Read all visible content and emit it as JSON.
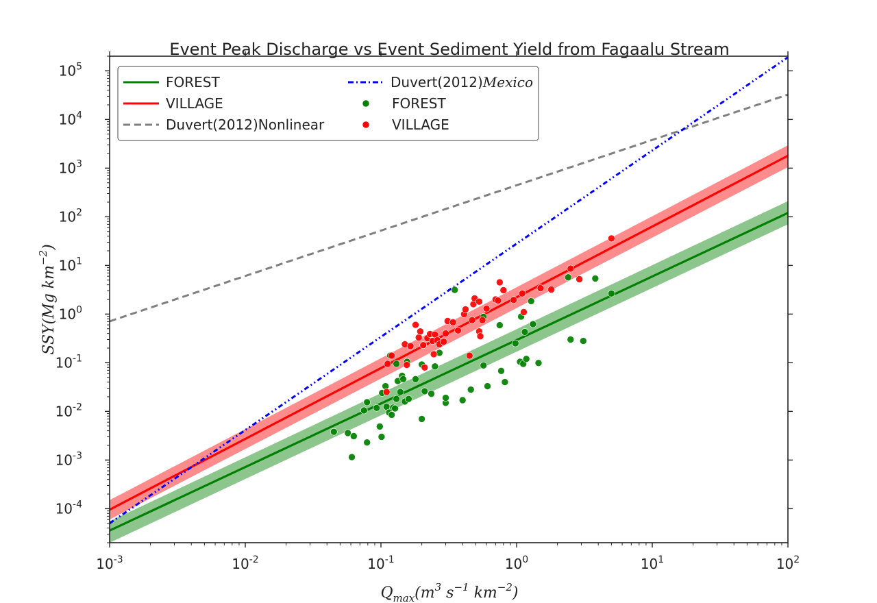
{
  "chart_data": {
    "type": "scatter",
    "title": "Event Peak Discharge vs Event Sediment Yield from Fagaalu Stream",
    "xlabel": "Q_max(m^3 s^-1 km^-2)",
    "ylabel": "SSY(Mg km^-2)",
    "x_scale": "log",
    "y_scale": "log",
    "xlim": [
      0.001,
      100
    ],
    "ylim": [
      2e-05,
      200000
    ],
    "x_ticks": [
      {
        "value": 0.001,
        "base": "10",
        "exp": "-3"
      },
      {
        "value": 0.01,
        "base": "10",
        "exp": "-2"
      },
      {
        "value": 0.1,
        "base": "10",
        "exp": "-1"
      },
      {
        "value": 1,
        "base": "10",
        "exp": "0"
      },
      {
        "value": 10,
        "base": "10",
        "exp": "1"
      },
      {
        "value": 100,
        "base": "10",
        "exp": "2"
      }
    ],
    "y_ticks": [
      {
        "value": 0.0001,
        "base": "10",
        "exp": "-4"
      },
      {
        "value": 0.001,
        "base": "10",
        "exp": "-3"
      },
      {
        "value": 0.01,
        "base": "10",
        "exp": "-2"
      },
      {
        "value": 0.1,
        "base": "10",
        "exp": "-1"
      },
      {
        "value": 1,
        "base": "10",
        "exp": "0"
      },
      {
        "value": 10,
        "base": "10",
        "exp": "1"
      },
      {
        "value": 100,
        "base": "10",
        "exp": "2"
      },
      {
        "value": 1000,
        "base": "10",
        "exp": "3"
      },
      {
        "value": 10000,
        "base": "10",
        "exp": "4"
      },
      {
        "value": 100000,
        "base": "10",
        "exp": "5"
      }
    ],
    "grid": false,
    "legend_position": "top-left",
    "lines": [
      {
        "name": "FOREST",
        "color": "#008000",
        "style": "solid",
        "x": [
          0.001,
          100
        ],
        "y": [
          3.55e-05,
          120
        ],
        "band": {
          "color": "#008000",
          "opacity": 0.45,
          "lower": [
            2e-05,
            70
          ],
          "upper": [
            5.5e-05,
            210
          ]
        }
      },
      {
        "name": "VILLAGE",
        "color": "#ff0000",
        "style": "solid",
        "x": [
          0.001,
          100
        ],
        "y": [
          9.55e-05,
          1800
        ],
        "band": {
          "color": "#ff0000",
          "opacity": 0.45,
          "lower": [
            6e-05,
            1050
          ],
          "upper": [
            0.00015,
            2950
          ]
        }
      },
      {
        "name": "Duvert(2012)Nonlinear",
        "color": "#7f7f7f",
        "style": "dashed",
        "x": [
          0.001,
          100
        ],
        "y": [
          0.71,
          32500
        ]
      },
      {
        "name": "Duvert(2012)",
        "name_math": "Mexico",
        "color": "#0000ff",
        "style": "dashdotdot",
        "x": [
          0.001,
          100
        ],
        "y": [
          5e-05,
          190000
        ]
      }
    ],
    "scatter_series": [
      {
        "name": "FOREST",
        "color": "#008000",
        "points": [
          [
            0.045,
            0.0038
          ],
          [
            0.057,
            0.0036
          ],
          [
            0.063,
            0.0031
          ],
          [
            0.061,
            0.00115
          ],
          [
            0.075,
            0.0105
          ],
          [
            0.079,
            0.0155
          ],
          [
            0.079,
            0.0023
          ],
          [
            0.093,
            0.0118
          ],
          [
            0.098,
            0.0049
          ],
          [
            0.101,
            0.003
          ],
          [
            0.102,
            0.024
          ],
          [
            0.108,
            0.033
          ],
          [
            0.11,
            0.0125
          ],
          [
            0.115,
            0.0095
          ],
          [
            0.12,
            0.0085
          ],
          [
            0.123,
            0.012
          ],
          [
            0.127,
            0.0115
          ],
          [
            0.13,
            0.018
          ],
          [
            0.13,
            0.095
          ],
          [
            0.133,
            0.042
          ],
          [
            0.139,
            0.025
          ],
          [
            0.143,
            0.054
          ],
          [
            0.146,
            0.046
          ],
          [
            0.15,
            0.016
          ],
          [
            0.156,
            0.105
          ],
          [
            0.16,
            0.018
          ],
          [
            0.117,
            0.14
          ],
          [
            0.18,
            0.046
          ],
          [
            0.2,
            0.007
          ],
          [
            0.21,
            0.026
          ],
          [
            0.2,
            0.092
          ],
          [
            0.235,
            0.023
          ],
          [
            0.25,
            0.084
          ],
          [
            0.27,
            0.16
          ],
          [
            0.3,
            0.015
          ],
          [
            0.3,
            0.019
          ],
          [
            0.35,
            3.15
          ],
          [
            0.4,
            0.017
          ],
          [
            0.46,
            0.028
          ],
          [
            0.57,
            0.88
          ],
          [
            0.57,
            0.088
          ],
          [
            0.61,
            0.033
          ],
          [
            0.75,
            0.59
          ],
          [
            0.77,
            0.068
          ],
          [
            0.82,
            0.04
          ],
          [
            0.98,
            0.25
          ],
          [
            1.06,
            0.105
          ],
          [
            1.08,
            0.89
          ],
          [
            1.12,
            0.095
          ],
          [
            1.15,
            0.43
          ],
          [
            1.18,
            0.12
          ],
          [
            1.28,
            1.85
          ],
          [
            1.32,
            0.62
          ],
          [
            1.45,
            0.099
          ],
          [
            2.4,
            5.7
          ],
          [
            2.5,
            0.3
          ],
          [
            3.1,
            0.28
          ],
          [
            3.8,
            5.4
          ],
          [
            5.0,
            2.65
          ]
        ]
      },
      {
        "name": "VILLAGE",
        "color": "#ff0000",
        "points": [
          [
            0.11,
            0.025
          ],
          [
            0.112,
            0.095
          ],
          [
            0.12,
            0.14
          ],
          [
            0.15,
            0.24
          ],
          [
            0.155,
            0.09
          ],
          [
            0.165,
            0.22
          ],
          [
            0.18,
            0.6
          ],
          [
            0.19,
            0.33
          ],
          [
            0.195,
            0.44
          ],
          [
            0.205,
            0.23
          ],
          [
            0.21,
            0.08
          ],
          [
            0.22,
            0.32
          ],
          [
            0.23,
            0.39
          ],
          [
            0.24,
            0.28
          ],
          [
            0.245,
            0.15
          ],
          [
            0.25,
            0.38
          ],
          [
            0.26,
            0.29
          ],
          [
            0.27,
            0.24
          ],
          [
            0.29,
            0.27
          ],
          [
            0.3,
            0.4
          ],
          [
            0.31,
            0.72
          ],
          [
            0.34,
            0.68
          ],
          [
            0.37,
            0.46
          ],
          [
            0.41,
            1.0
          ],
          [
            0.42,
            1.25
          ],
          [
            0.45,
            0.14
          ],
          [
            0.47,
            0.75
          ],
          [
            0.48,
            1.6
          ],
          [
            0.49,
            2.1
          ],
          [
            0.53,
            1.8
          ],
          [
            0.53,
            0.44
          ],
          [
            0.54,
            0.35
          ],
          [
            0.56,
            0.75
          ],
          [
            0.6,
            1.3
          ],
          [
            0.7,
            2.0
          ],
          [
            0.73,
            1.9
          ],
          [
            0.75,
            4.5
          ],
          [
            0.8,
            3.1
          ],
          [
            0.95,
            1.95
          ],
          [
            1.1,
            2.65
          ],
          [
            1.13,
            1.1
          ],
          [
            1.5,
            3.4
          ],
          [
            1.8,
            3.2
          ],
          [
            2.5,
            8.6
          ],
          [
            2.9,
            5.2
          ],
          [
            5.0,
            36.0
          ]
        ]
      }
    ],
    "legend": {
      "col1": [
        {
          "label": "FOREST",
          "kind": "line",
          "color": "#008000"
        },
        {
          "label": "VILLAGE",
          "kind": "line",
          "color": "#ff0000"
        },
        {
          "label": "Duvert(2012)Nonlinear",
          "kind": "dashed",
          "color": "#7f7f7f"
        }
      ],
      "col2": [
        {
          "label": "Duvert(2012)",
          "label_math": "Mexico",
          "kind": "dashdot",
          "color": "#0000ff"
        },
        {
          "label": "FOREST",
          "kind": "marker",
          "color": "#008000"
        },
        {
          "label": "VILLAGE",
          "kind": "marker",
          "color": "#ff0000"
        }
      ]
    }
  }
}
